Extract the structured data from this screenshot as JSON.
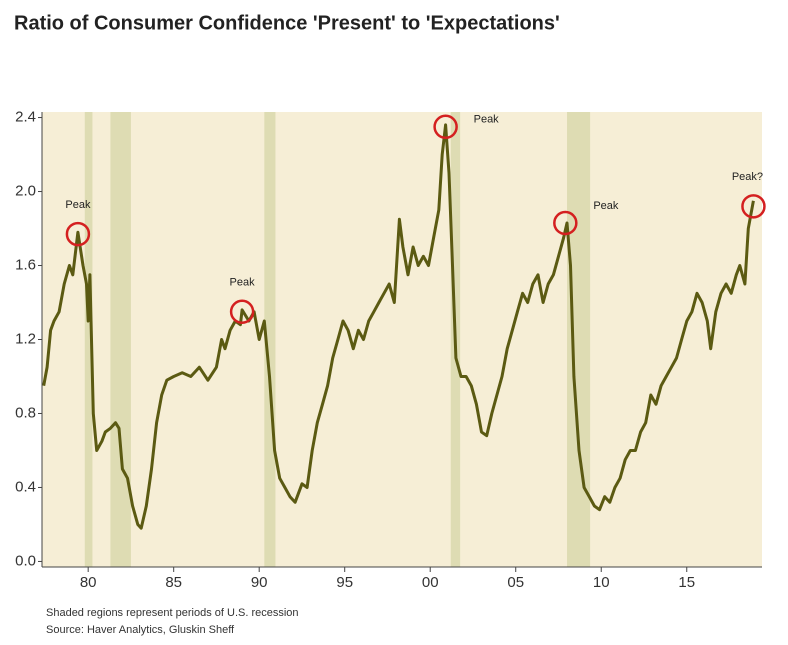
{
  "chart_data": {
    "type": "line",
    "title": "Ratio of Consumer Confidence 'Present' to 'Expectations'",
    "notes": [
      "Shaded regions represent periods of U.S. recession",
      "Source: Haver Analytics, Gluskin Sheff"
    ],
    "color": "#5b5a12",
    "background": "#f6eed6",
    "recession_color": "#dedcb3",
    "recessions": [
      [
        1979.8,
        1980.25
      ],
      [
        1981.3,
        1982.5
      ],
      [
        1990.3,
        1990.95
      ],
      [
        2001.2,
        2001.75
      ],
      [
        2008.0,
        2009.35
      ]
    ],
    "xlim": [
      1977.3,
      2019.4
    ],
    "ylim": [
      -0.03,
      2.43
    ],
    "xticks": [
      {
        "value": 1980,
        "label": "80"
      },
      {
        "value": 1985,
        "label": "85"
      },
      {
        "value": 1990,
        "label": "90"
      },
      {
        "value": 1995,
        "label": "95"
      },
      {
        "value": 2000,
        "label": "00"
      },
      {
        "value": 2005,
        "label": "05"
      },
      {
        "value": 2010,
        "label": "10"
      },
      {
        "value": 2015,
        "label": "15"
      }
    ],
    "yticks": [
      {
        "value": 0,
        "label": "0.0"
      },
      0.4,
      0.8,
      1.2,
      1.6,
      {
        "value": 2,
        "label": "2.0"
      },
      2.4
    ],
    "x": [
      1977.4,
      1977.6,
      1977.8,
      1978.0,
      1978.3,
      1978.6,
      1978.9,
      1979.1,
      1979.4,
      1979.7,
      1979.9,
      1980.0,
      1980.1,
      1980.3,
      1980.5,
      1980.8,
      1981.0,
      1981.3,
      1981.6,
      1981.8,
      1982.0,
      1982.3,
      1982.6,
      1982.9,
      1983.1,
      1983.4,
      1983.7,
      1984.0,
      1984.3,
      1984.6,
      1985.0,
      1985.5,
      1986.0,
      1986.5,
      1987.0,
      1987.5,
      1987.8,
      1988.0,
      1988.3,
      1988.6,
      1988.9,
      1989.0,
      1989.4,
      1989.7,
      1990.0,
      1990.3,
      1990.6,
      1990.9,
      1991.2,
      1991.5,
      1991.8,
      1992.1,
      1992.5,
      1992.8,
      1993.1,
      1993.4,
      1993.7,
      1994.0,
      1994.3,
      1994.6,
      1994.9,
      1995.2,
      1995.5,
      1995.8,
      1996.1,
      1996.4,
      1996.7,
      1997.0,
      1997.3,
      1997.6,
      1997.9,
      1998.2,
      1998.4,
      1998.7,
      1999.0,
      1999.3,
      1999.6,
      1999.9,
      2000.2,
      2000.5,
      2000.7,
      2000.9,
      2001.1,
      2001.3,
      2001.5,
      2001.8,
      2002.1,
      2002.4,
      2002.7,
      2003.0,
      2003.3,
      2003.6,
      2003.9,
      2004.2,
      2004.5,
      2004.8,
      2005.1,
      2005.4,
      2005.7,
      2006.0,
      2006.3,
      2006.6,
      2006.9,
      2007.2,
      2007.5,
      2007.8,
      2008.0,
      2008.2,
      2008.4,
      2008.7,
      2009.0,
      2009.3,
      2009.6,
      2009.9,
      2010.2,
      2010.5,
      2010.8,
      2011.1,
      2011.4,
      2011.7,
      2012.0,
      2012.3,
      2012.6,
      2012.9,
      2013.2,
      2013.5,
      2013.8,
      2014.1,
      2014.4,
      2014.7,
      2015.0,
      2015.3,
      2015.6,
      2015.9,
      2016.2,
      2016.4,
      2016.7,
      2017.0,
      2017.3,
      2017.6,
      2017.9,
      2018.1,
      2018.4,
      2018.6,
      2018.9
    ],
    "values": [
      0.95,
      1.05,
      1.25,
      1.3,
      1.35,
      1.5,
      1.6,
      1.55,
      1.78,
      1.6,
      1.5,
      1.3,
      1.55,
      0.8,
      0.6,
      0.65,
      0.7,
      0.72,
      0.75,
      0.72,
      0.5,
      0.45,
      0.3,
      0.2,
      0.18,
      0.3,
      0.5,
      0.75,
      0.9,
      0.98,
      1.0,
      1.02,
      1.0,
      1.05,
      0.98,
      1.05,
      1.2,
      1.15,
      1.25,
      1.3,
      1.28,
      1.36,
      1.3,
      1.35,
      1.2,
      1.3,
      1.0,
      0.6,
      0.45,
      0.4,
      0.35,
      0.32,
      0.42,
      0.4,
      0.6,
      0.75,
      0.85,
      0.95,
      1.1,
      1.2,
      1.3,
      1.25,
      1.15,
      1.25,
      1.2,
      1.3,
      1.35,
      1.4,
      1.45,
      1.5,
      1.4,
      1.85,
      1.7,
      1.55,
      1.7,
      1.6,
      1.65,
      1.6,
      1.75,
      1.9,
      2.2,
      2.36,
      2.1,
      1.6,
      1.1,
      1.0,
      1.0,
      0.95,
      0.85,
      0.7,
      0.68,
      0.8,
      0.9,
      1.0,
      1.15,
      1.25,
      1.35,
      1.45,
      1.4,
      1.5,
      1.55,
      1.4,
      1.5,
      1.55,
      1.65,
      1.75,
      1.83,
      1.6,
      1.0,
      0.6,
      0.4,
      0.35,
      0.3,
      0.28,
      0.35,
      0.32,
      0.4,
      0.45,
      0.55,
      0.6,
      0.6,
      0.7,
      0.75,
      0.9,
      0.85,
      0.95,
      1.0,
      1.05,
      1.1,
      1.2,
      1.3,
      1.35,
      1.45,
      1.4,
      1.3,
      1.15,
      1.35,
      1.45,
      1.5,
      1.45,
      1.55,
      1.6,
      1.5,
      1.8,
      1.95
    ],
    "annotations": [
      {
        "x": 1979.4,
        "y": 1.77,
        "label": "Peak"
      },
      {
        "x": 1989.0,
        "y": 1.35,
        "label": "Peak"
      },
      {
        "x": 2000.9,
        "y": 2.35,
        "label": "Peak"
      },
      {
        "x": 2007.9,
        "y": 1.83,
        "label": "Peak"
      },
      {
        "x": 2018.9,
        "y": 1.92,
        "label": "Peak?"
      }
    ],
    "annotation_color": "#d42020"
  }
}
